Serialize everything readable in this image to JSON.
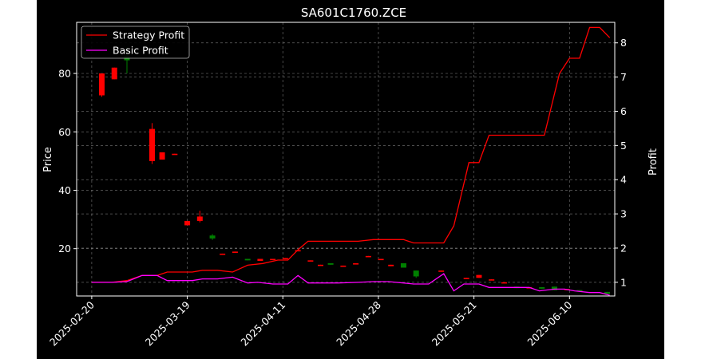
{
  "chart_data": {
    "type": "candlestick+line",
    "title": "SA601C1760.ZCE",
    "ylabel_left": "Price",
    "ylabel_right": "Profit",
    "ylim_left": [
      3.8,
      97.5
    ],
    "ylim_right": [
      0.6,
      8.6
    ],
    "left_ticks": [
      20,
      40,
      60,
      80
    ],
    "right_ticks": [
      1,
      2,
      3,
      4,
      5,
      6,
      7,
      8
    ],
    "x_tick_labels": [
      {
        "label": "2025-02-20",
        "index": 0
      },
      {
        "label": "2025-03-19",
        "index": 19
      },
      {
        "label": "2025-04-11",
        "index": 38
      },
      {
        "label": "2025-04-28",
        "index": 57
      },
      {
        "label": "2025-05-21",
        "index": 76
      },
      {
        "label": "2025-06-10",
        "index": 95
      }
    ],
    "x_range": [
      -3,
      104
    ],
    "grid": true,
    "legend_position": "top-left",
    "colors": {
      "up": "#008000",
      "down": "#ff0000",
      "strategy": "#ff0000",
      "basic": "#ff00ff",
      "background": "#000000",
      "axes": "#ffffff",
      "grid": "#888888"
    },
    "candles": [
      {
        "i": 2,
        "o": 80,
        "c": 72.5,
        "h": 80,
        "l": 72
      },
      {
        "i": 4.5,
        "o": 82,
        "c": 78,
        "h": 82,
        "l": 78
      },
      {
        "i": 7,
        "o": 84.5,
        "c": 86,
        "h": 89,
        "l": 80
      },
      {
        "i": 12,
        "o": 61,
        "c": 50,
        "h": 63,
        "l": 49
      },
      {
        "i": 14,
        "o": 53,
        "c": 50.5,
        "h": 53,
        "l": 50.5
      },
      {
        "i": 16.5,
        "o": 52.5,
        "c": 52.2,
        "h": 52.5,
        "l": 52.2
      },
      {
        "i": 19,
        "o": 29.5,
        "c": 28,
        "h": 29.5,
        "l": 28
      },
      {
        "i": 21.5,
        "o": 31,
        "c": 29.5,
        "h": 33,
        "l": 29
      },
      {
        "i": 24,
        "o": 23.5,
        "c": 24.5,
        "h": 25,
        "l": 23
      },
      {
        "i": 26,
        "o": 18.3,
        "c": 18,
        "h": 18.3,
        "l": 18
      },
      {
        "i": 28.5,
        "o": 19,
        "c": 18.8,
        "h": 19,
        "l": 18.8
      },
      {
        "i": 31,
        "o": 16,
        "c": 16.5,
        "h": 16.5,
        "l": 16
      },
      {
        "i": 33.5,
        "o": 16.5,
        "c": 15.8,
        "h": 16.5,
        "l": 15.8
      },
      {
        "i": 36,
        "o": 16.5,
        "c": 16.2,
        "h": 16.5,
        "l": 16.2
      },
      {
        "i": 38.5,
        "o": 16.8,
        "c": 16.5,
        "h": 16.8,
        "l": 16.5
      },
      {
        "i": 41,
        "o": 19.5,
        "c": 19.3,
        "h": 19.5,
        "l": 19.3
      },
      {
        "i": 43.5,
        "o": 16,
        "c": 15.8,
        "h": 16,
        "l": 15.8
      },
      {
        "i": 45.5,
        "o": 14.5,
        "c": 14.3,
        "h": 14.5,
        "l": 14.3
      },
      {
        "i": 47.5,
        "o": 14.5,
        "c": 15,
        "h": 15,
        "l": 14.5
      },
      {
        "i": 50,
        "o": 14.2,
        "c": 14,
        "h": 14.2,
        "l": 14
      },
      {
        "i": 52.5,
        "o": 15,
        "c": 14.8,
        "h": 15,
        "l": 14.8
      },
      {
        "i": 55,
        "o": 17.5,
        "c": 17.3,
        "h": 17.5,
        "l": 17.3
      },
      {
        "i": 57.5,
        "o": 16.5,
        "c": 16.3,
        "h": 16.5,
        "l": 16.3
      },
      {
        "i": 59.5,
        "o": 14.5,
        "c": 14,
        "h": 14.5,
        "l": 14
      },
      {
        "i": 62,
        "o": 13.5,
        "c": 15,
        "h": 15,
        "l": 13.5
      },
      {
        "i": 64.5,
        "o": 10.5,
        "c": 12.5,
        "h": 12.5,
        "l": 10
      },
      {
        "i": 69.5,
        "o": 12.5,
        "c": 12.2,
        "h": 12.5,
        "l": 12.2
      },
      {
        "i": 74.5,
        "o": 10,
        "c": 9.8,
        "h": 10,
        "l": 9.8
      },
      {
        "i": 77,
        "o": 11,
        "c": 10,
        "h": 11,
        "l": 10
      },
      {
        "i": 79.5,
        "o": 9.5,
        "c": 9.3,
        "h": 9.5,
        "l": 9.3
      },
      {
        "i": 82,
        "o": 8.5,
        "c": 8.3,
        "h": 8.5,
        "l": 8.3
      },
      {
        "i": 84.5,
        "o": 6.5,
        "c": 7,
        "h": 7,
        "l": 6.5
      },
      {
        "i": 87,
        "o": 6.8,
        "c": 6.5,
        "h": 6.8,
        "l": 6.5
      },
      {
        "i": 89.5,
        "o": 6.3,
        "c": 6.8,
        "h": 6.8,
        "l": 6.3
      },
      {
        "i": 92,
        "o": 5.8,
        "c": 7,
        "h": 7,
        "l": 5.8
      },
      {
        "i": 94.5,
        "o": 6.2,
        "c": 6,
        "h": 6.2,
        "l": 6
      },
      {
        "i": 97,
        "o": 5.5,
        "c": 5.8,
        "h": 5.8,
        "l": 5.5
      },
      {
        "i": 102.5,
        "o": 4.5,
        "c": 5.2,
        "h": 5.2,
        "l": 4.5
      }
    ],
    "series": [
      {
        "name": "Strategy Profit",
        "points": [
          [
            0,
            1.0
          ],
          [
            4,
            1.0
          ],
          [
            7,
            1.05
          ],
          [
            10,
            1.2
          ],
          [
            13,
            1.2
          ],
          [
            15,
            1.3
          ],
          [
            18,
            1.3
          ],
          [
            20,
            1.3
          ],
          [
            22,
            1.35
          ],
          [
            25,
            1.35
          ],
          [
            28,
            1.3
          ],
          [
            31,
            1.5
          ],
          [
            34,
            1.55
          ],
          [
            37,
            1.65
          ],
          [
            39,
            1.65
          ],
          [
            41,
            1.95
          ],
          [
            43,
            2.2
          ],
          [
            46,
            2.2
          ],
          [
            49,
            2.2
          ],
          [
            53,
            2.2
          ],
          [
            56,
            2.25
          ],
          [
            59,
            2.25
          ],
          [
            62,
            2.25
          ],
          [
            64,
            2.15
          ],
          [
            67,
            2.15
          ],
          [
            70,
            2.15
          ],
          [
            72,
            2.65
          ],
          [
            75,
            4.5
          ],
          [
            77,
            4.5
          ],
          [
            79,
            5.3
          ],
          [
            81,
            5.3
          ],
          [
            84,
            5.3
          ],
          [
            87,
            5.3
          ],
          [
            90,
            5.3
          ],
          [
            93,
            7.1
          ],
          [
            95,
            7.55
          ],
          [
            97,
            7.55
          ],
          [
            99,
            8.45
          ],
          [
            101,
            8.45
          ],
          [
            103,
            8.15
          ]
        ]
      },
      {
        "name": "Basic Profit",
        "points": [
          [
            0,
            1.0
          ],
          [
            4,
            1.0
          ],
          [
            7,
            1.02
          ],
          [
            10,
            1.2
          ],
          [
            13,
            1.2
          ],
          [
            15,
            1.05
          ],
          [
            18,
            1.05
          ],
          [
            20,
            1.05
          ],
          [
            22,
            1.1
          ],
          [
            25,
            1.1
          ],
          [
            28,
            1.15
          ],
          [
            31,
            0.98
          ],
          [
            33,
            1.0
          ],
          [
            36,
            0.95
          ],
          [
            39,
            0.95
          ],
          [
            41,
            1.2
          ],
          [
            43,
            0.98
          ],
          [
            46,
            0.98
          ],
          [
            49,
            0.98
          ],
          [
            53,
            1.0
          ],
          [
            56,
            1.02
          ],
          [
            59,
            1.02
          ],
          [
            62,
            0.98
          ],
          [
            64,
            0.95
          ],
          [
            67,
            0.95
          ],
          [
            70,
            1.25
          ],
          [
            72,
            0.75
          ],
          [
            74,
            0.95
          ],
          [
            77,
            0.95
          ],
          [
            79,
            0.85
          ],
          [
            81,
            0.85
          ],
          [
            84,
            0.85
          ],
          [
            87,
            0.85
          ],
          [
            89,
            0.75
          ],
          [
            92,
            0.8
          ],
          [
            94,
            0.8
          ],
          [
            96,
            0.75
          ],
          [
            99,
            0.7
          ],
          [
            101,
            0.7
          ],
          [
            103,
            0.62
          ]
        ]
      }
    ]
  }
}
